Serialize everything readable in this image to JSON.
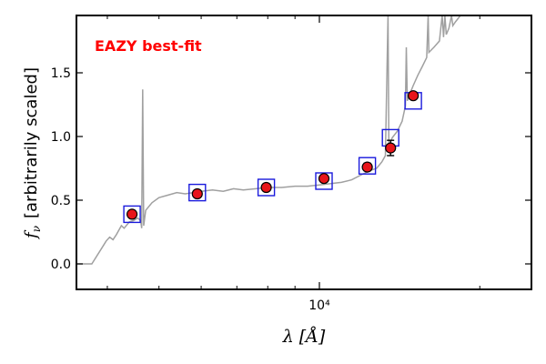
{
  "chart_data": {
    "type": "scatter",
    "annotation": "EAZY best-fit",
    "annotation_color": "#ff0000",
    "xlabel": "λ [Å]",
    "xlabel_symbol": "λ",
    "xlabel_unit": "[Å]",
    "ylabel": "f_ν [arbitrarily scaled]",
    "ylabel_symbol_base": "f",
    "ylabel_symbol_sub": "ν",
    "ylabel_text": "[arbitrarily scaled]",
    "x_scale": "log",
    "xlim": [
      3500,
      25000
    ],
    "ylim": [
      -0.2,
      1.95
    ],
    "x_ticks": [
      {
        "value": 10000,
        "label": "10⁴"
      }
    ],
    "y_ticks": [
      {
        "value": 0.0,
        "label": "0.0"
      },
      {
        "value": 0.5,
        "label": "0.5"
      },
      {
        "value": 1.0,
        "label": "1.0"
      },
      {
        "value": 1.5,
        "label": "1.5"
      }
    ],
    "grid": false,
    "colors": {
      "template": "#a0a0a0",
      "observed_fill": "#e8141a",
      "observed_edge": "#000000",
      "model_box": "#1a1adc",
      "error_bar": "#000000"
    },
    "observed": [
      {
        "x": 4450,
        "y": 0.39,
        "err": 0.0
      },
      {
        "x": 5900,
        "y": 0.55,
        "err": 0.0
      },
      {
        "x": 7950,
        "y": 0.6,
        "err": 0.0
      },
      {
        "x": 10200,
        "y": 0.67,
        "err": 0.0
      },
      {
        "x": 12300,
        "y": 0.76,
        "err": 0.03
      },
      {
        "x": 13600,
        "y": 0.91,
        "err": 0.06
      },
      {
        "x": 15000,
        "y": 1.32,
        "err": 0.0
      }
    ],
    "model": [
      {
        "x": 4450,
        "y": 0.39
      },
      {
        "x": 5900,
        "y": 0.56
      },
      {
        "x": 7950,
        "y": 0.6
      },
      {
        "x": 10200,
        "y": 0.65
      },
      {
        "x": 12300,
        "y": 0.77
      },
      {
        "x": 13600,
        "y": 0.99
      },
      {
        "x": 15000,
        "y": 1.28
      }
    ],
    "template_spectrum": [
      [
        3500,
        0.0
      ],
      [
        3740,
        0.0
      ],
      [
        3900,
        0.12
      ],
      [
        3980,
        0.18
      ],
      [
        4040,
        0.21
      ],
      [
        4100,
        0.19
      ],
      [
        4160,
        0.23
      ],
      [
        4250,
        0.3
      ],
      [
        4300,
        0.28
      ],
      [
        4400,
        0.33
      ],
      [
        4480,
        0.34
      ],
      [
        4560,
        0.36
      ],
      [
        4620,
        0.34
      ],
      [
        4640,
        0.28
      ],
      [
        4660,
        1.37
      ],
      [
        4680,
        0.3
      ],
      [
        4720,
        0.42
      ],
      [
        4850,
        0.48
      ],
      [
        5000,
        0.52
      ],
      [
        5200,
        0.54
      ],
      [
        5400,
        0.56
      ],
      [
        5600,
        0.55
      ],
      [
        5800,
        0.56
      ],
      [
        6000,
        0.57
      ],
      [
        6300,
        0.58
      ],
      [
        6600,
        0.57
      ],
      [
        6900,
        0.59
      ],
      [
        7200,
        0.58
      ],
      [
        7600,
        0.59
      ],
      [
        8000,
        0.6
      ],
      [
        8500,
        0.6
      ],
      [
        9000,
        0.61
      ],
      [
        9500,
        0.61
      ],
      [
        10000,
        0.62
      ],
      [
        10500,
        0.63
      ],
      [
        11000,
        0.64
      ],
      [
        11500,
        0.66
      ],
      [
        12000,
        0.7
      ],
      [
        12400,
        0.73
      ],
      [
        12800,
        0.75
      ],
      [
        13100,
        0.8
      ],
      [
        13300,
        0.85
      ],
      [
        13450,
        1.95
      ],
      [
        13500,
        0.92
      ],
      [
        13700,
        0.99
      ],
      [
        14000,
        1.04
      ],
      [
        14300,
        1.12
      ],
      [
        14500,
        1.24
      ],
      [
        14560,
        1.7
      ],
      [
        14620,
        1.28
      ],
      [
        14800,
        1.34
      ],
      [
        15000,
        1.4
      ],
      [
        15300,
        1.48
      ],
      [
        15600,
        1.55
      ],
      [
        15900,
        1.62
      ],
      [
        16000,
        1.95
      ],
      [
        16050,
        1.66
      ],
      [
        16400,
        1.7
      ],
      [
        16800,
        1.75
      ],
      [
        17000,
        1.95
      ],
      [
        17100,
        1.78
      ],
      [
        17200,
        1.95
      ],
      [
        17300,
        1.8
      ],
      [
        17500,
        1.85
      ],
      [
        17700,
        1.95
      ],
      [
        17800,
        1.87
      ],
      [
        18000,
        1.9
      ],
      [
        18400,
        1.95
      ],
      [
        25000,
        1.95
      ]
    ]
  }
}
